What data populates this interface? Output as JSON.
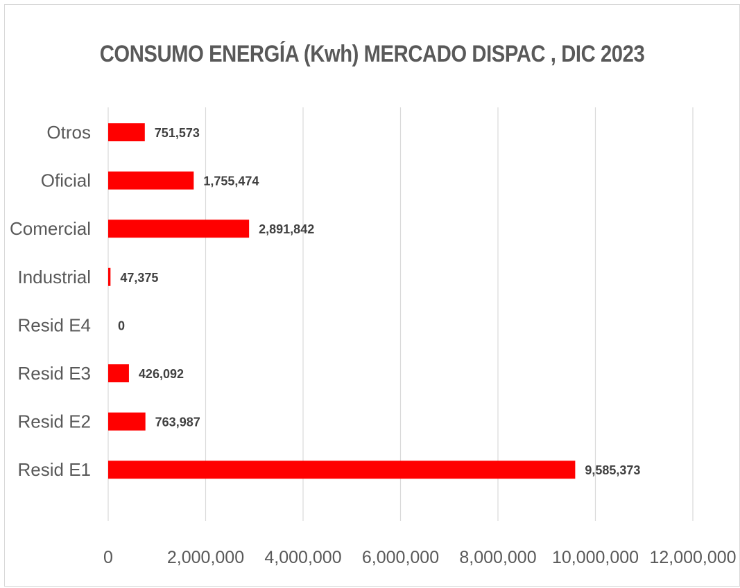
{
  "chart_data": {
    "type": "bar",
    "orientation": "horizontal",
    "title": "CONSUMO ENERGÍA (Kwh) MERCADO DISPAC , DIC 2023",
    "categories": [
      "Otros",
      "Oficial",
      "Comercial",
      "Industrial",
      "Resid E4",
      "Resid E3",
      "Resid E2",
      "Resid E1"
    ],
    "values": [
      751573,
      1755474,
      2891842,
      47375,
      0,
      426092,
      763987,
      9585373
    ],
    "data_labels": [
      "751,573",
      "1,755,474",
      "2,891,842",
      "47,375",
      "0",
      "426,092",
      "763,987",
      "9,585,373"
    ],
    "xlim": [
      0,
      12000000
    ],
    "x_ticks": [
      0,
      2000000,
      4000000,
      6000000,
      8000000,
      10000000,
      12000000
    ],
    "x_tick_labels": [
      "0",
      "2,000,000",
      "4,000,000",
      "6,000,000",
      "8,000,000",
      "10,000,000",
      "12,000,000"
    ],
    "grid": "vertical",
    "legend": "none",
    "bar_color": "#ff0000"
  }
}
